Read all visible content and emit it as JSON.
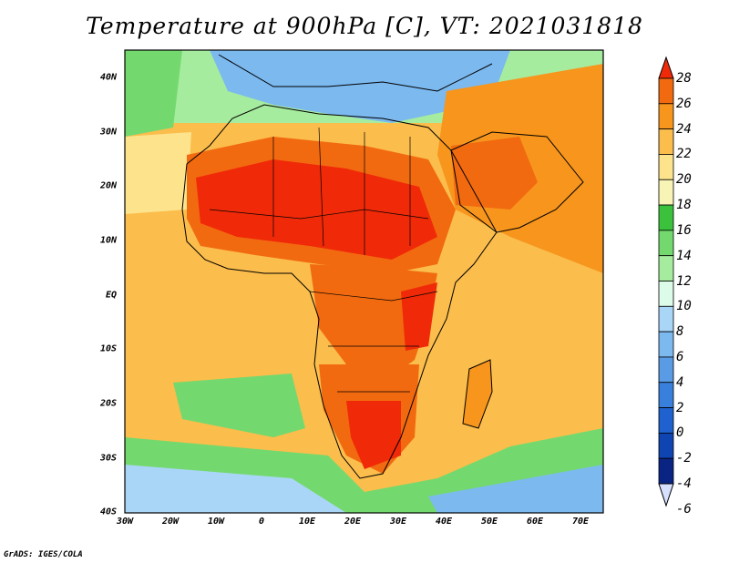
{
  "title": "Temperature at 900hPa [C], VT: 2021031818",
  "credit": "GrADS: IGES/COLA",
  "x_ticks": [
    "30W",
    "20W",
    "10W",
    "0",
    "10E",
    "20E",
    "30E",
    "40E",
    "50E",
    "60E",
    "70E"
  ],
  "y_ticks": [
    "40N",
    "30N",
    "20N",
    "10N",
    "EQ",
    "10S",
    "20S",
    "30S",
    "40S"
  ],
  "colorbar": {
    "labels": [
      "28",
      "26",
      "24",
      "22",
      "20",
      "18",
      "16",
      "14",
      "12",
      "10",
      "8",
      "6",
      "4",
      "2",
      "0",
      "-2",
      "-4",
      "-6"
    ],
    "colors": [
      "#f02a08",
      "#f26a10",
      "#f7951d",
      "#fbbd4c",
      "#fde48c",
      "#f8f4b6",
      "#3bc13b",
      "#73d96e",
      "#a6ec9e",
      "#dcfbe8",
      "#a9d6f6",
      "#7cb9ef",
      "#5a9be6",
      "#397fdc",
      "#1f61cf",
      "#0f44b3",
      "#0a2483",
      "#d7e0ff"
    ]
  },
  "map": {
    "lon_range": [
      -30,
      76
    ],
    "lat_range": [
      -40,
      44
    ],
    "field": "Temperature at 900hPa",
    "units": "C"
  }
}
